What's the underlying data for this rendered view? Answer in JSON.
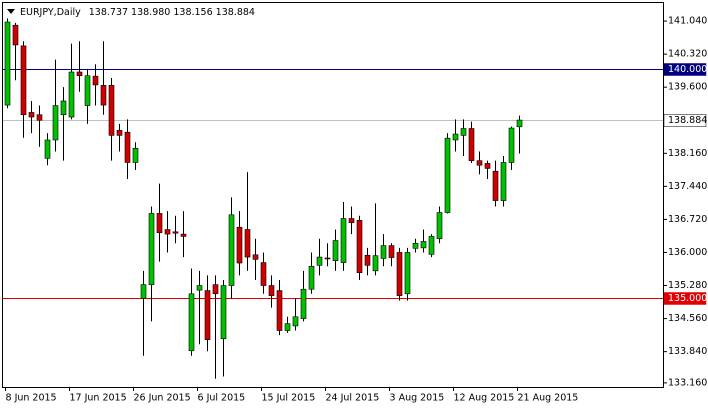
{
  "chart_data": {
    "type": "candlestick",
    "title": "EURJPY,Daily",
    "subtitle": "138.737 138.980 138.156 138.884",
    "categories": [
      "8 Jun 2015",
      null,
      null,
      null,
      null,
      null,
      null,
      null,
      "17 Jun 2015",
      null,
      null,
      null,
      null,
      null,
      null,
      null,
      "26 Jun 2015",
      null,
      null,
      null,
      null,
      null,
      null,
      null,
      "6 Jul 2015",
      null,
      null,
      null,
      null,
      null,
      null,
      null,
      "15 Jul 2015",
      null,
      null,
      null,
      null,
      null,
      null,
      null,
      "24 Jul 2015",
      null,
      null,
      null,
      null,
      null,
      null,
      null,
      "3 Aug 2015",
      null,
      null,
      null,
      null,
      null,
      null,
      null,
      "12 Aug 2015",
      null,
      null,
      null,
      null,
      null,
      null,
      null,
      "21 Aug 2015"
    ],
    "open": [
      139.21,
      140.95,
      140.5,
      139.05,
      139.0,
      138.05,
      138.45,
      139.0,
      138.95,
      139.93,
      139.2,
      139.84,
      139.64,
      139.64,
      138.66,
      138.62,
      137.96,
      135.0,
      135.3,
      136.85,
      136.5,
      136.45,
      136.4,
      133.86,
      135.18,
      135.17,
      135.3,
      134.12,
      135.28,
      136.55,
      136.5,
      135.95,
      135.78,
      135.28,
      135.17,
      134.3,
      134.4,
      134.56,
      135.2,
      135.72,
      135.88,
      135.82,
      135.78,
      136.74,
      136.7,
      135.94,
      135.6,
      135.87,
      136.15,
      136.0,
      135.1,
      136.09,
      136.1,
      135.96,
      136.3,
      136.87,
      138.45,
      138.55,
      138.7,
      138.0,
      137.94,
      137.77,
      137.13,
      137.96,
      138.737
    ],
    "high": [
      141.1,
      141.0,
      140.6,
      139.3,
      139.2,
      138.6,
      140.2,
      139.6,
      140.55,
      140.6,
      140.0,
      140.1,
      140.6,
      139.8,
      138.8,
      138.9,
      138.4,
      135.6,
      137.0,
      137.5,
      136.9,
      136.8,
      136.9,
      135.65,
      135.6,
      135.5,
      135.5,
      135.4,
      137.2,
      136.9,
      137.75,
      136.3,
      136.0,
      135.5,
      135.4,
      134.6,
      135.0,
      135.6,
      136.0,
      136.3,
      136.2,
      136.5,
      137.1,
      137.0,
      136.8,
      136.1,
      137.07,
      136.4,
      136.2,
      136.1,
      136.1,
      136.3,
      136.5,
      136.4,
      137.0,
      138.6,
      138.9,
      138.9,
      138.85,
      138.2,
      138.0,
      138.0,
      138.1,
      138.74,
      138.98
    ],
    "low": [
      139.14,
      139.75,
      138.5,
      138.6,
      138.3,
      137.9,
      138.2,
      138.0,
      138.9,
      139.5,
      138.8,
      139.2,
      139.0,
      138.0,
      138.2,
      137.6,
      137.8,
      133.75,
      134.5,
      135.8,
      136.0,
      136.2,
      135.9,
      133.75,
      134.0,
      133.85,
      133.25,
      133.3,
      135.0,
      135.5,
      135.6,
      135.4,
      135.1,
      134.8,
      134.2,
      134.25,
      134.3,
      134.5,
      135.1,
      135.5,
      135.7,
      135.6,
      135.6,
      136.4,
      135.4,
      135.5,
      135.5,
      135.7,
      135.7,
      134.95,
      134.95,
      136.0,
      136.0,
      135.9,
      136.2,
      136.85,
      138.2,
      138.1,
      137.95,
      137.7,
      137.6,
      137.0,
      137.0,
      137.8,
      138.156
    ],
    "close": [
      141.02,
      140.52,
      139.0,
      138.95,
      138.88,
      138.45,
      139.2,
      139.3,
      139.93,
      139.85,
      139.85,
      139.65,
      139.21,
      138.55,
      138.55,
      137.96,
      138.27,
      135.3,
      136.85,
      136.43,
      136.4,
      136.42,
      136.35,
      135.1,
      135.28,
      134.1,
      135.1,
      135.28,
      136.82,
      135.77,
      135.9,
      135.85,
      135.28,
      135.06,
      134.3,
      134.45,
      134.6,
      135.2,
      135.7,
      135.9,
      135.86,
      136.26,
      136.74,
      136.65,
      135.56,
      135.72,
      135.93,
      136.15,
      135.89,
      135.06,
      136.0,
      136.2,
      136.24,
      136.35,
      136.87,
      138.49,
      138.58,
      138.7,
      138.0,
      137.9,
      137.83,
      137.13,
      137.96,
      138.71,
      138.884
    ],
    "up_color": "#00c000",
    "down_color": "#d00000",
    "ylim": [
      133.07,
      141.39
    ],
    "yticks": [
      {
        "value": 141.04,
        "label": "141.040"
      },
      {
        "value": 140.32,
        "label": "140.320"
      },
      {
        "value": 139.6,
        "label": "139.600"
      },
      {
        "value": 138.16,
        "label": "138.160"
      },
      {
        "value": 137.44,
        "label": "137.440"
      },
      {
        "value": 136.72,
        "label": "136.720"
      },
      {
        "value": 136.0,
        "label": "136.000"
      },
      {
        "value": 135.28,
        "label": "135.280"
      },
      {
        "value": 134.56,
        "label": "134.560"
      },
      {
        "value": 133.84,
        "label": "133.840"
      },
      {
        "value": 133.16,
        "label": "133.160"
      }
    ],
    "hlines": [
      {
        "value": 140.0,
        "label": "140.000",
        "color": "#000080"
      },
      {
        "value": 138.884,
        "label": "138.884",
        "color": "#c0c0c0"
      },
      {
        "value": 135.0,
        "label": "135.000",
        "color": "#e00000"
      }
    ]
  }
}
